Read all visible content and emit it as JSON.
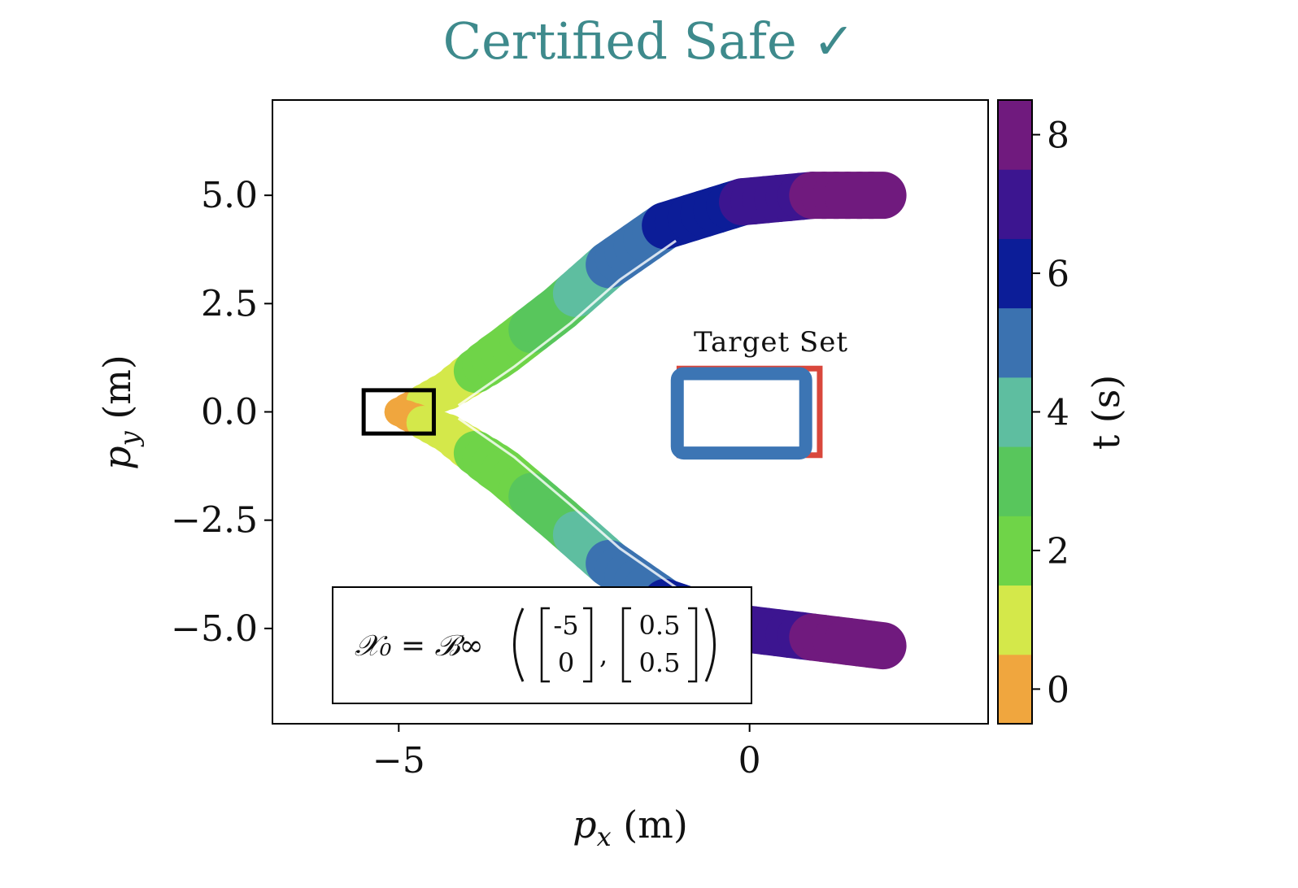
{
  "title": "Certified Safe ✓",
  "colors": {
    "title": "#3e8a8c",
    "target_outer": "#d9473c",
    "target_inner": "#3c75b4",
    "init_box": "#000000"
  },
  "chart_data": {
    "type": "line",
    "title": "Certified Safe ✓",
    "xlabel": "p_x (m)",
    "ylabel": "p_y (m)",
    "colorbar_label": "t (s)",
    "xlim": [
      -6.8,
      3.4
    ],
    "ylim": [
      -7.2,
      7.2
    ],
    "clim": [
      -0.5,
      8.5
    ],
    "xticks": [
      -5,
      0
    ],
    "xtick_labels": [
      "−5",
      "0"
    ],
    "yticks": [
      5.0,
      2.5,
      0.0,
      -2.5,
      -5.0
    ],
    "ytick_labels": [
      "5.0",
      "2.5",
      "0.0",
      "−2.5",
      "−5.0"
    ],
    "cbar_ticks": [
      0,
      2,
      4,
      6,
      8
    ],
    "cbar_tick_labels": [
      "0",
      "2",
      "4",
      "6",
      "8"
    ],
    "cbar_colors": [
      "#f0a63e",
      "#d4e84a",
      "#6fd448",
      "#58c65c",
      "#5ebea0",
      "#3b72b0",
      "#0c1d98",
      "#3c1590",
      "#701a7e"
    ],
    "grid": false,
    "series": [
      {
        "points": [
          {
            "x": -5.0,
            "y": 0.0,
            "t": 0
          },
          {
            "x": -4.3,
            "y": 0.5,
            "t": 1
          },
          {
            "x": -3.5,
            "y": 1.4,
            "t": 2
          },
          {
            "x": -2.7,
            "y": 2.4,
            "t": 3
          },
          {
            "x": -2.0,
            "y": 3.4,
            "t": 4.5
          },
          {
            "x": -1.2,
            "y": 4.3,
            "t": 5.5
          },
          {
            "x": -0.1,
            "y": 4.85,
            "t": 6.5
          },
          {
            "x": 0.9,
            "y": 5.0,
            "t": 7.5
          },
          {
            "x": 1.9,
            "y": 5.0,
            "t": 8
          }
        ]
      },
      {
        "points": [
          {
            "x": -5.0,
            "y": 0.0,
            "t": 0
          },
          {
            "x": -4.3,
            "y": -0.5,
            "t": 1
          },
          {
            "x": -3.5,
            "y": -1.4,
            "t": 2
          },
          {
            "x": -2.7,
            "y": -2.5,
            "t": 3
          },
          {
            "x": -2.0,
            "y": -3.5,
            "t": 4.5
          },
          {
            "x": -1.2,
            "y": -4.4,
            "t": 5.5
          },
          {
            "x": -0.1,
            "y": -5.0,
            "t": 6.5
          },
          {
            "x": 0.9,
            "y": -5.2,
            "t": 7.5
          },
          {
            "x": 1.9,
            "y": -5.4,
            "t": 8
          }
        ]
      }
    ],
    "initial_set": {
      "x_range": [
        -5.5,
        -4.5
      ],
      "y_range": [
        -0.5,
        0.5
      ]
    },
    "target_set": {
      "label": "Target Set",
      "x_range": [
        -1.0,
        1.0
      ],
      "y_range": [
        -1.0,
        1.0
      ]
    },
    "annotation": {
      "lhs": "𝒳₀ = ℬ∞",
      "center": [
        "-5",
        "0"
      ],
      "radius": [
        "0.5",
        "0.5"
      ]
    }
  }
}
